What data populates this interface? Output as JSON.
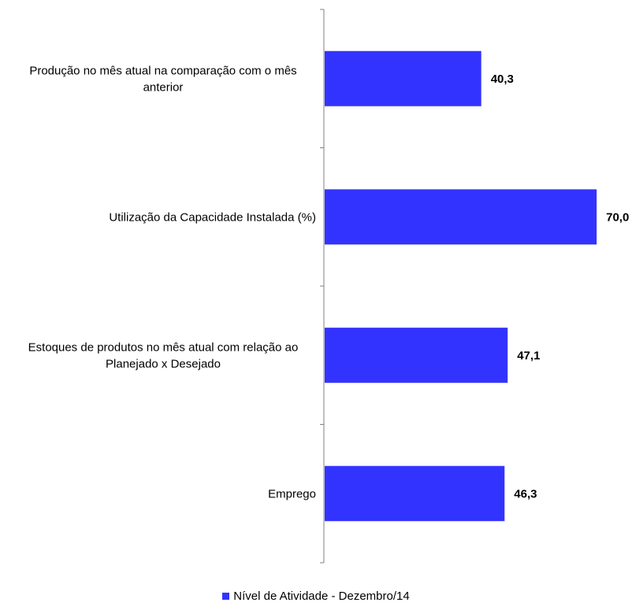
{
  "chart_data": {
    "type": "bar",
    "orientation": "horizontal",
    "categories": [
      "Produção no mês atual na comparação com o mês anterior",
      "Utilização da Capacidade Instalada (%)",
      "Estoques de produtos no mês atual com relação ao Planejado x Desejado",
      "Emprego"
    ],
    "series": [
      {
        "name": "Nível de Atividade - Dezembro/14",
        "values": [
          40.3,
          70.0,
          47.1,
          46.3
        ],
        "labels": [
          "40,3",
          "70,0",
          "47,1",
          "46,3"
        ],
        "color": "#3333ff"
      }
    ],
    "xlim": [
      0,
      72
    ],
    "grid": false,
    "legend_position": "bottom"
  }
}
